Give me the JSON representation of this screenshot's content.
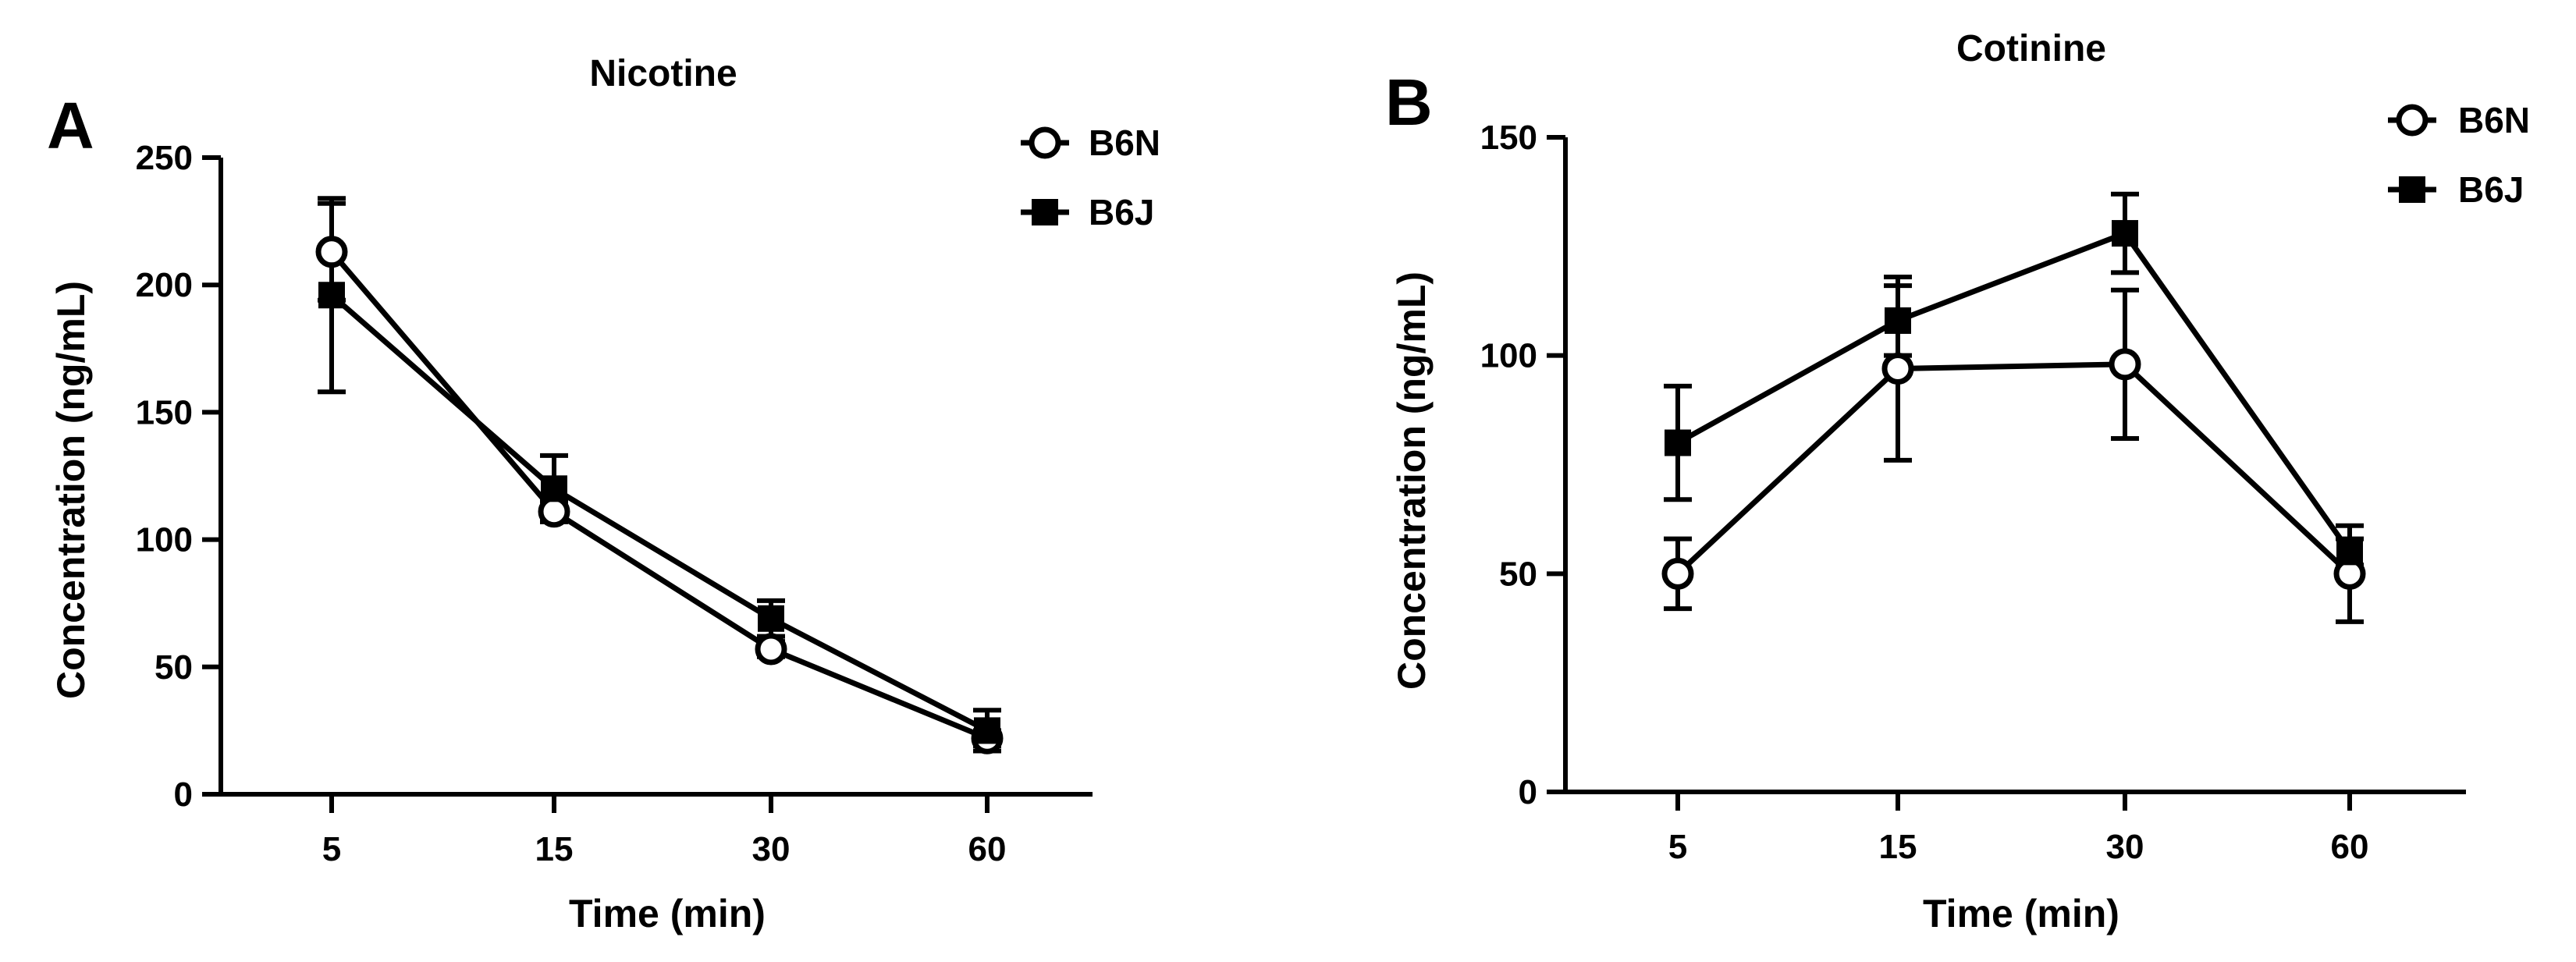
{
  "chart_data": [
    {
      "panel": "A",
      "type": "line",
      "title": "Nicotine",
      "xlabel": "Time (min)",
      "ylabel": "Concentration (ng/mL)",
      "categories": [
        "5",
        "15",
        "30",
        "60"
      ],
      "ylim": [
        0,
        250
      ],
      "yticks": [
        0,
        50,
        100,
        150,
        200,
        250
      ],
      "legend_position": "top-right",
      "series": [
        {
          "name": "B6N",
          "marker": "open-circle",
          "values": [
            213,
            111,
            57,
            22
          ],
          "errors": [
            19,
            4,
            3,
            3
          ]
        },
        {
          "name": "B6J",
          "marker": "filled-square",
          "values": [
            196,
            120,
            69,
            25
          ],
          "errors": [
            38,
            13,
            7,
            8
          ]
        }
      ]
    },
    {
      "panel": "B",
      "type": "line",
      "title": "Cotinine",
      "xlabel": "Time (min)",
      "ylabel": "Concentration (ng/mL)",
      "categories": [
        "5",
        "15",
        "30",
        "60"
      ],
      "ylim": [
        0,
        150
      ],
      "yticks": [
        0,
        50,
        100,
        150
      ],
      "legend_position": "top-right",
      "series": [
        {
          "name": "B6N",
          "marker": "open-circle",
          "values": [
            50,
            97,
            98,
            50
          ],
          "errors": [
            8,
            21,
            17,
            11
          ]
        },
        {
          "name": "B6J",
          "marker": "filled-square",
          "values": [
            80,
            108,
            128,
            55
          ],
          "errors": [
            13,
            8,
            9,
            3
          ]
        }
      ]
    }
  ]
}
